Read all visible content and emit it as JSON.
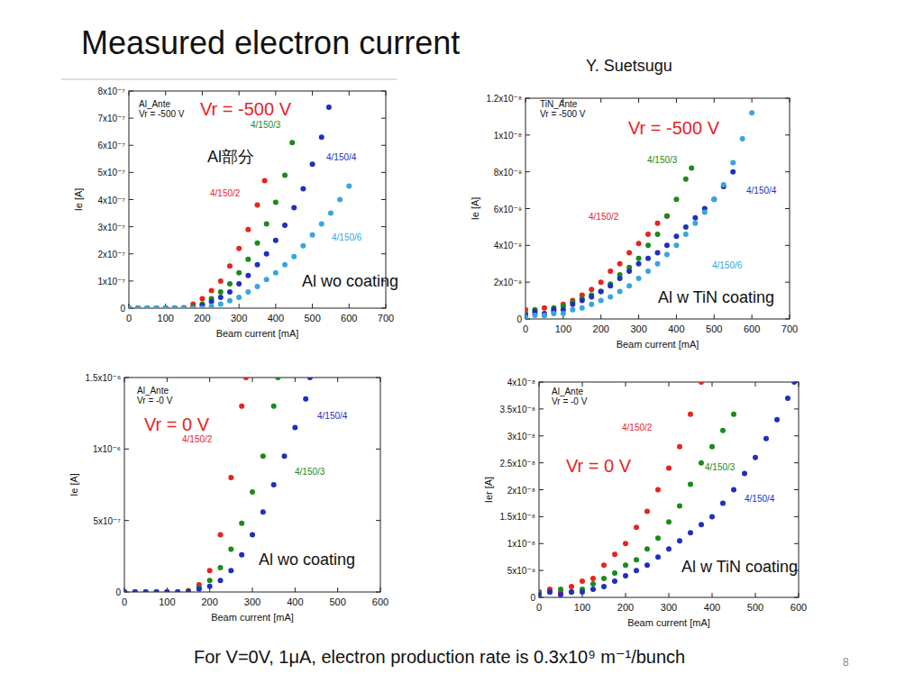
{
  "page": {
    "title": "Measured electron current",
    "author": "Y. Suetsugu",
    "footer": "For V=0V, 1μA, electron production rate is 0.3x10⁹ m⁻¹/bunch",
    "page_number": "8"
  },
  "chart_data": [
    {
      "type": "scatter",
      "title": "Al_Ante",
      "subtitle": "Vr = -500 V",
      "x_label": "Beam current [mA]",
      "y_label": "Ie [A]",
      "annotations": [
        "Vr = -500 V",
        "Al部分",
        "Al wo coating"
      ],
      "marker": "circle",
      "xlim": [
        0,
        700
      ],
      "xticks": [
        0,
        100,
        200,
        300,
        400,
        500,
        600,
        700
      ],
      "ylim": [
        0,
        8e-07
      ],
      "yticks": [
        0,
        {
          "value": 1e-07,
          "label": "1x10⁻⁷"
        },
        {
          "value": 2e-07,
          "label": "2x10⁻⁷"
        },
        {
          "value": 3e-07,
          "label": "3x10⁻⁷"
        },
        {
          "value": 4e-07,
          "label": "4x10⁻⁷"
        },
        {
          "value": 5e-07,
          "label": "5x10⁻⁷"
        },
        {
          "value": 6e-07,
          "label": "6x10⁻⁷"
        },
        {
          "value": 7e-07,
          "label": "7x10⁻⁷"
        },
        {
          "value": 8e-07,
          "label": "8x10⁻⁷"
        }
      ],
      "series": [
        {
          "name": "4/150/2",
          "color": "#e8231f",
          "x": [
            0,
            25,
            50,
            75,
            100,
            125,
            150,
            175,
            200,
            225,
            250,
            275,
            300,
            325,
            350,
            370
          ],
          "values": [
            0,
            0,
            0,
            0,
            0,
            0,
            2e-09,
            1.5e-08,
            3.5e-08,
            6.5e-08,
            1e-07,
            1.55e-07,
            2.2e-07,
            2.9e-07,
            3.8e-07,
            4.7e-07
          ]
        },
        {
          "name": "4/150/3",
          "color": "#1a8a1a",
          "x": [
            0,
            25,
            50,
            75,
            100,
            125,
            150,
            175,
            200,
            225,
            250,
            275,
            300,
            325,
            350,
            375,
            400,
            425,
            445
          ],
          "values": [
            0,
            0,
            0,
            0,
            0,
            0,
            0,
            5e-09,
            1.5e-08,
            3.5e-08,
            6e-08,
            9e-08,
            1.3e-07,
            1.8e-07,
            2.4e-07,
            3.1e-07,
            3.9e-07,
            4.9e-07,
            6.1e-07
          ]
        },
        {
          "name": "4/150/4",
          "color": "#1f2fbf",
          "x": [
            0,
            25,
            50,
            75,
            100,
            125,
            150,
            175,
            200,
            225,
            250,
            275,
            300,
            325,
            350,
            375,
            400,
            425,
            450,
            475,
            500,
            525,
            545
          ],
          "values": [
            0,
            0,
            0,
            0,
            0,
            0,
            0,
            0,
            1e-08,
            2.5e-08,
            4e-08,
            6e-08,
            9e-08,
            1.2e-07,
            1.6e-07,
            2e-07,
            2.5e-07,
            3.05e-07,
            3.7e-07,
            4.4e-07,
            5.3e-07,
            6.3e-07,
            7.4e-07
          ]
        },
        {
          "name": "4/150/6",
          "color": "#35a6e0",
          "x": [
            0,
            25,
            50,
            75,
            100,
            125,
            150,
            175,
            200,
            225,
            250,
            275,
            300,
            325,
            350,
            375,
            400,
            425,
            450,
            475,
            500,
            525,
            550,
            575,
            600
          ],
          "values": [
            0,
            0,
            0,
            0,
            0,
            0,
            0,
            0,
            0,
            7e-09,
            1.5e-08,
            2.7e-08,
            4e-08,
            6e-08,
            8e-08,
            1.05e-07,
            1.3e-07,
            1.6e-07,
            1.9e-07,
            2.3e-07,
            2.7e-07,
            3.1e-07,
            3.5e-07,
            4e-07,
            4.5e-07
          ]
        }
      ]
    },
    {
      "type": "scatter",
      "title": "TiN_Ante",
      "subtitle": "Vr = -500 V",
      "x_label": "Beam current [mA]",
      "y_label": "Ie [A]",
      "annotations": [
        "Vr = -500 V",
        "Al w TiN coating"
      ],
      "marker": "circle",
      "xlim": [
        0,
        700
      ],
      "xticks": [
        0,
        100,
        200,
        300,
        400,
        500,
        600,
        700
      ],
      "ylim": [
        0,
        1.2e-08
      ],
      "yticks": [
        0,
        {
          "value": 2e-09,
          "label": "2x10⁻⁹"
        },
        {
          "value": 4e-09,
          "label": "4x10⁻⁹"
        },
        {
          "value": 6e-09,
          "label": "6x10⁻⁹"
        },
        {
          "value": 8e-09,
          "label": "8x10⁻⁹"
        },
        {
          "value": 1e-08,
          "label": "1x10⁻⁸"
        },
        {
          "value": 1.2e-08,
          "label": "1.2x10⁻⁸"
        }
      ],
      "series": [
        {
          "name": "4/150/2",
          "color": "#e8231f",
          "x": [
            0,
            25,
            50,
            75,
            100,
            125,
            150,
            175,
            200,
            225,
            250,
            275,
            300,
            325,
            350,
            375
          ],
          "values": [
            5e-10,
            3e-10,
            6e-10,
            4e-10,
            8e-10,
            1e-09,
            1.3e-09,
            1.6e-09,
            2e-09,
            2.6e-09,
            3e-09,
            3.6e-09,
            4.1e-09,
            4.6e-09,
            5.2e-09,
            5.6e-09
          ]
        },
        {
          "name": "4/150/3",
          "color": "#1a8a1a",
          "x": [
            0,
            25,
            50,
            75,
            100,
            125,
            150,
            175,
            200,
            225,
            250,
            275,
            300,
            325,
            350,
            375,
            400,
            425,
            440
          ],
          "values": [
            3e-10,
            5e-10,
            2e-10,
            6e-10,
            7e-10,
            9e-10,
            1.1e-09,
            1.3e-09,
            1.5e-09,
            1.9e-09,
            2.4e-09,
            2.8e-09,
            3.3e-09,
            4e-09,
            4.6e-09,
            5.6e-09,
            6.5e-09,
            7.6e-09,
            8.2e-09
          ]
        },
        {
          "name": "4/150/4",
          "color": "#1f2fbf",
          "x": [
            0,
            25,
            50,
            75,
            100,
            125,
            150,
            175,
            200,
            225,
            250,
            275,
            300,
            325,
            350,
            375,
            400,
            425,
            450,
            475,
            500,
            525,
            550
          ],
          "values": [
            2e-10,
            4e-10,
            3e-10,
            5e-10,
            5e-10,
            8e-10,
            1e-09,
            1.2e-09,
            1.5e-09,
            1.8e-09,
            2.2e-09,
            2.6e-09,
            3e-09,
            3.3e-09,
            3.6e-09,
            4e-09,
            4.5e-09,
            5e-09,
            5.5e-09,
            6e-09,
            6.5e-09,
            7.2e-09,
            8e-09
          ]
        },
        {
          "name": "4/150/6",
          "color": "#35a6e0",
          "x": [
            0,
            25,
            50,
            75,
            100,
            125,
            150,
            175,
            200,
            225,
            250,
            275,
            300,
            325,
            350,
            375,
            400,
            425,
            450,
            475,
            500,
            525,
            550,
            575,
            600
          ],
          "values": [
            1e-10,
            2e-10,
            2e-10,
            3e-10,
            3e-10,
            5e-10,
            6e-10,
            8e-10,
            1e-09,
            1.2e-09,
            1.5e-09,
            1.8e-09,
            2.2e-09,
            2.6e-09,
            3e-09,
            3.5e-09,
            4e-09,
            4.6e-09,
            5.2e-09,
            5.8e-09,
            6.5e-09,
            7.3e-09,
            8.5e-09,
            9.8e-09,
            1.12e-08
          ]
        }
      ]
    },
    {
      "type": "scatter",
      "title": "Al_Ante",
      "subtitle": "Vr = -0 V",
      "x_label": "Beam current [mA]",
      "y_label": "Ie [A]",
      "annotations": [
        "Vr = 0 V",
        "Al wo coating"
      ],
      "marker": "circle",
      "xlim": [
        0,
        600
      ],
      "xticks": [
        0,
        100,
        200,
        300,
        400,
        500,
        600
      ],
      "ylim": [
        0,
        1.5e-06
      ],
      "yticks": [
        0,
        {
          "value": 5e-07,
          "label": "5x10⁻⁷"
        },
        {
          "value": 1e-06,
          "label": "1x10⁻⁶"
        },
        {
          "value": 1.5e-06,
          "label": "1.5x10⁻⁶"
        }
      ],
      "series": [
        {
          "name": "4/150/2",
          "color": "#e8231f",
          "x": [
            0,
            25,
            50,
            75,
            100,
            125,
            150,
            175,
            200,
            225,
            250,
            275,
            285
          ],
          "values": [
            0,
            0,
            0,
            0,
            0,
            0,
            1e-08,
            5e-08,
            1.5e-07,
            4e-07,
            8e-07,
            1.3e-06,
            1.5e-06
          ]
        },
        {
          "name": "4/150/3",
          "color": "#1a8a1a",
          "x": [
            0,
            25,
            50,
            75,
            100,
            125,
            150,
            175,
            200,
            225,
            250,
            275,
            300,
            325,
            350,
            360
          ],
          "values": [
            0,
            0,
            0,
            0,
            0,
            0,
            5e-09,
            3e-08,
            8e-08,
            1.7e-07,
            3e-07,
            4.8e-07,
            7e-07,
            9.5e-07,
            1.3e-06,
            1.5e-06
          ]
        },
        {
          "name": "4/150/4",
          "color": "#1f2fbf",
          "x": [
            0,
            25,
            50,
            75,
            100,
            125,
            150,
            175,
            200,
            225,
            250,
            275,
            300,
            325,
            350,
            375,
            400,
            425,
            435
          ],
          "values": [
            0,
            0,
            0,
            0,
            0,
            0,
            0,
            2e-08,
            4e-08,
            8e-08,
            1.5e-07,
            2.6e-07,
            4e-07,
            5.6e-07,
            7.5e-07,
            9.5e-07,
            1.15e-06,
            1.35e-06,
            1.5e-06
          ]
        }
      ]
    },
    {
      "type": "scatter",
      "title": "Al_Ante",
      "subtitle": "Vr = -0 V",
      "x_label": "Beam current [mA]",
      "y_label": "Ier [A]",
      "annotations": [
        "Vr = 0 V",
        "Al w TiN coating"
      ],
      "marker": "circle",
      "xlim": [
        0,
        600
      ],
      "xticks": [
        0,
        100,
        200,
        300,
        400,
        500,
        600
      ],
      "ylim": [
        0,
        4e-08
      ],
      "yticks": [
        0,
        {
          "value": 5e-09,
          "label": "5x10⁻⁹"
        },
        {
          "value": 1e-08,
          "label": "1x10⁻⁸"
        },
        {
          "value": 1.5e-08,
          "label": "1.5x10⁻⁸"
        },
        {
          "value": 2e-08,
          "label": "2x10⁻⁸"
        },
        {
          "value": 2.5e-08,
          "label": "2.5x10⁻⁸"
        },
        {
          "value": 3e-08,
          "label": "3x10⁻⁸"
        },
        {
          "value": 3.5e-08,
          "label": "3.5x10⁻⁸"
        },
        {
          "value": 4e-08,
          "label": "4x10⁻⁸"
        }
      ],
      "series": [
        {
          "name": "4/150/2",
          "color": "#e8231f",
          "x": [
            0,
            25,
            50,
            75,
            100,
            125,
            150,
            175,
            200,
            225,
            250,
            275,
            300,
            325,
            350,
            375
          ],
          "values": [
            1e-09,
            1.5e-09,
            1e-09,
            2e-09,
            3e-09,
            3.5e-09,
            6e-09,
            8e-09,
            1e-08,
            1.3e-08,
            1.6e-08,
            2e-08,
            2.4e-08,
            2.8e-08,
            3.4e-08,
            4e-08
          ]
        },
        {
          "name": "4/150/3",
          "color": "#1a8a1a",
          "x": [
            0,
            25,
            50,
            75,
            100,
            125,
            150,
            175,
            200,
            225,
            250,
            275,
            300,
            325,
            350,
            375,
            400,
            425,
            450
          ],
          "values": [
            1e-09,
            1e-09,
            1.5e-09,
            1e-09,
            1.5e-09,
            2.5e-09,
            3.5e-09,
            4.5e-09,
            6e-09,
            7e-09,
            9e-09,
            1.1e-08,
            1.4e-08,
            1.7e-08,
            2.1e-08,
            2.5e-08,
            2.8e-08,
            3.1e-08,
            3.4e-08
          ]
        },
        {
          "name": "4/150/4",
          "color": "#1f2fbf",
          "x": [
            0,
            25,
            50,
            75,
            100,
            125,
            150,
            175,
            200,
            225,
            250,
            275,
            300,
            325,
            350,
            375,
            400,
            425,
            450,
            475,
            500,
            525,
            550,
            575,
            590
          ],
          "values": [
            5e-10,
            1e-09,
            5e-10,
            1e-09,
            1e-09,
            1.5e-09,
            2e-09,
            3e-09,
            4e-09,
            5e-09,
            6e-09,
            7.5e-09,
            9e-09,
            1.05e-08,
            1.2e-08,
            1.35e-08,
            1.5e-08,
            1.75e-08,
            2e-08,
            2.3e-08,
            2.6e-08,
            2.95e-08,
            3.3e-08,
            3.7e-08,
            4e-08
          ]
        }
      ]
    }
  ]
}
